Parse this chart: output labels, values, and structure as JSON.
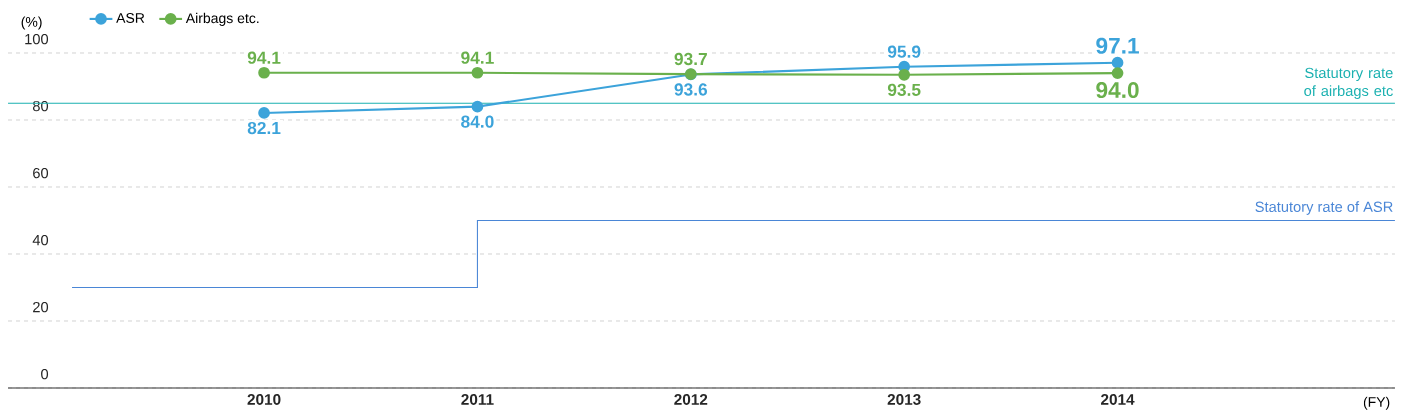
{
  "chart_data": {
    "type": "line",
    "ylabel": "(%)",
    "xlabel": "(FY)",
    "x": [
      2010,
      2011,
      2012,
      2013,
      2014
    ],
    "xlim": [
      2008.8,
      2015.3
    ],
    "xticks": [
      2010,
      2011,
      2012,
      2013,
      2014
    ],
    "ylim": [
      0,
      100
    ],
    "yticks": [
      0,
      20,
      40,
      60,
      80,
      100
    ],
    "series": [
      {
        "name": "ASR",
        "color": "#3ca3da",
        "marker": "circle",
        "values": [
          82.1,
          84.0,
          93.6,
          95.9,
          97.1
        ],
        "value_labels": [
          "82.1",
          "84.0",
          "93.6",
          "95.9",
          "97.1"
        ]
      },
      {
        "name": "Airbags etc.",
        "color": "#6ab04c",
        "marker": "circle",
        "values": [
          94.1,
          94.1,
          93.7,
          93.5,
          94.0
        ],
        "value_labels": [
          "94.1",
          "94.1",
          "93.7",
          "93.5",
          "94.0"
        ]
      },
      {
        "name": "Statutory rate of ASR",
        "type": "step",
        "color": "#4a86d6",
        "x": [
          2009.1,
          2011,
          2015.3
        ],
        "values": [
          30,
          50,
          50
        ]
      }
    ],
    "ref_lines": [
      {
        "axis": "y",
        "value": 85,
        "label": "Statutory rate of airbags etc",
        "color": "#1ab0b0"
      }
    ],
    "grid": "y",
    "legend": "top left",
    "line_style": "solid"
  }
}
